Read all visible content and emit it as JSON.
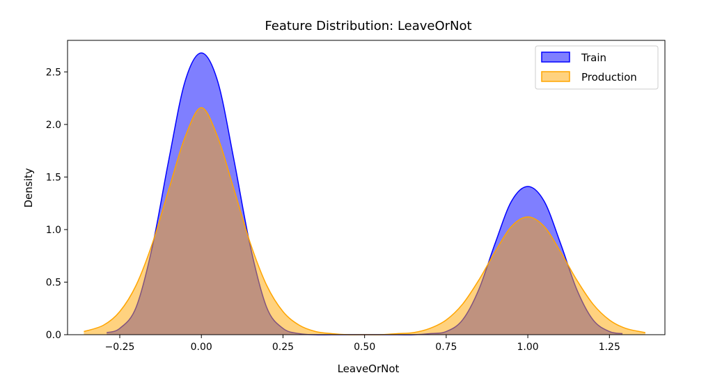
{
  "chart_data": {
    "type": "area",
    "title": "Feature Distribution: LeaveOrNot",
    "xlabel": "LeaveOrNot",
    "ylabel": "Density",
    "xlim": [
      -0.41,
      1.42
    ],
    "ylim": [
      0,
      2.8
    ],
    "xticks": [
      -0.25,
      0.0,
      0.25,
      0.5,
      0.75,
      1.0,
      1.25
    ],
    "xtick_labels": [
      "−0.25",
      "0.00",
      "0.25",
      "0.50",
      "0.75",
      "1.00",
      "1.25"
    ],
    "yticks": [
      0.0,
      0.5,
      1.0,
      1.5,
      2.0,
      2.5
    ],
    "ytick_labels": [
      "0.0",
      "0.5",
      "1.0",
      "1.5",
      "2.0",
      "2.5"
    ],
    "grid": false,
    "legend_position": "top-right",
    "series": [
      {
        "name": "Train",
        "color": "#0000ff",
        "fill": "#0000ff",
        "fill_opacity": 0.5,
        "x": [
          -0.29,
          -0.25,
          -0.2,
          -0.15,
          -0.1,
          -0.05,
          0.0,
          0.05,
          0.1,
          0.15,
          0.2,
          0.25,
          0.3,
          0.35,
          0.4,
          0.5,
          0.6,
          0.65,
          0.7,
          0.75,
          0.8,
          0.85,
          0.9,
          0.95,
          1.0,
          1.05,
          1.1,
          1.15,
          1.2,
          1.25,
          1.29
        ],
        "y": [
          0.02,
          0.06,
          0.26,
          0.84,
          1.66,
          2.41,
          2.68,
          2.41,
          1.66,
          0.84,
          0.26,
          0.06,
          0.01,
          0.0,
          0.0,
          0.0,
          0.0,
          0.0,
          0.01,
          0.03,
          0.14,
          0.43,
          0.87,
          1.27,
          1.41,
          1.27,
          0.87,
          0.43,
          0.14,
          0.03,
          0.01
        ]
      },
      {
        "name": "Production",
        "color": "#ffa500",
        "fill": "#ffa500",
        "fill_opacity": 0.5,
        "x": [
          -0.36,
          -0.3,
          -0.25,
          -0.2,
          -0.15,
          -0.1,
          -0.05,
          0.0,
          0.05,
          0.1,
          0.15,
          0.2,
          0.25,
          0.3,
          0.35,
          0.4,
          0.45,
          0.5,
          0.55,
          0.6,
          0.65,
          0.7,
          0.75,
          0.8,
          0.85,
          0.9,
          0.95,
          1.0,
          1.05,
          1.1,
          1.15,
          1.2,
          1.25,
          1.3,
          1.36
        ],
        "y": [
          0.03,
          0.09,
          0.22,
          0.47,
          0.87,
          1.38,
          1.88,
          2.16,
          1.88,
          1.38,
          0.87,
          0.47,
          0.22,
          0.09,
          0.03,
          0.01,
          0.0,
          0.0,
          0.0,
          0.01,
          0.02,
          0.06,
          0.14,
          0.29,
          0.52,
          0.79,
          1.03,
          1.12,
          1.03,
          0.79,
          0.52,
          0.29,
          0.14,
          0.06,
          0.02
        ]
      }
    ]
  }
}
